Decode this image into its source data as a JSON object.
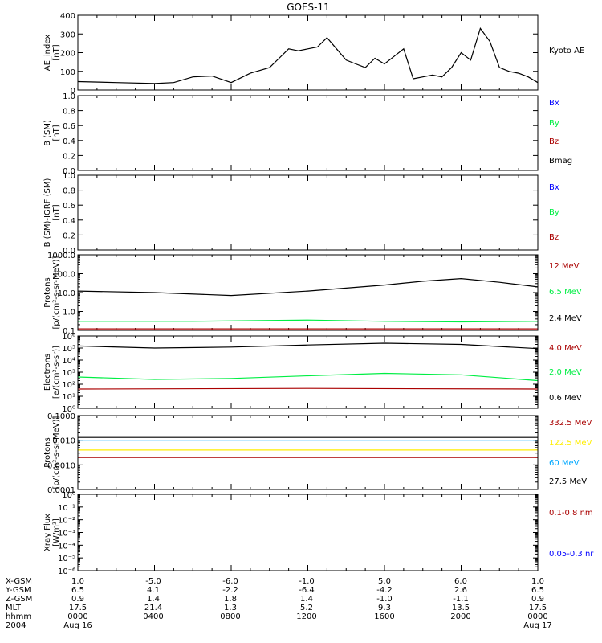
{
  "title": "GOES-11",
  "colors": {
    "black": "#000000",
    "blue": "#0000ff",
    "green": "#00ee44",
    "red": "#aa0000",
    "yellow": "#ffee00",
    "cyan": "#00a8ff"
  },
  "chart_data": [
    {
      "type": "line",
      "ylabel": [
        "AE_index",
        "[nT]"
      ],
      "ylim": [
        0,
        400
      ],
      "yscale": "linear",
      "yticks": [
        "0",
        "100",
        "200",
        "300",
        "400"
      ],
      "legend": [
        {
          "label": "Kyoto AE",
          "color": "#000000"
        }
      ],
      "series": [
        {
          "name": "Kyoto AE",
          "color": "#000000",
          "x": [
            0,
            2,
            4,
            5,
            6,
            7,
            8,
            9,
            10,
            10.5,
            11,
            11.5,
            12,
            12.5,
            13,
            13.5,
            14,
            14.5,
            15,
            15.5,
            16,
            16.5,
            17,
            17.5,
            18,
            18.5,
            19,
            19.5,
            20,
            20.5,
            21,
            21.5,
            22,
            22.5,
            23,
            23.5,
            24
          ],
          "y": [
            45,
            40,
            35,
            40,
            70,
            75,
            40,
            90,
            120,
            170,
            220,
            210,
            220,
            230,
            280,
            220,
            160,
            140,
            120,
            170,
            140,
            180,
            220,
            60,
            70,
            80,
            70,
            120,
            200,
            160,
            330,
            260,
            120,
            100,
            90,
            70,
            40
          ]
        }
      ]
    },
    {
      "type": "line",
      "ylabel": [
        "B (SM)",
        "[nT]"
      ],
      "ylim": [
        0,
        1
      ],
      "yscale": "linear",
      "yticks": [
        "0.0",
        "0.2",
        "0.4",
        "0.6",
        "0.8",
        "1.0"
      ],
      "legend": [
        {
          "label": "Bx",
          "color": "#0000ff"
        },
        {
          "label": "By",
          "color": "#00ee44"
        },
        {
          "label": "Bz",
          "color": "#aa0000"
        },
        {
          "label": "Bmag",
          "color": "#000000"
        }
      ],
      "series": []
    },
    {
      "type": "line",
      "ylabel": [
        "B (SM)-IGRF (SM)",
        "[nT]"
      ],
      "ylim": [
        0,
        1
      ],
      "yscale": "linear",
      "yticks": [
        "0.0",
        "0.2",
        "0.4",
        "0.6",
        "0.8",
        "1.0"
      ],
      "legend": [
        {
          "label": "Bx",
          "color": "#0000ff"
        },
        {
          "label": "By",
          "color": "#00ee44"
        },
        {
          "label": "Bz",
          "color": "#aa0000"
        }
      ],
      "series": []
    },
    {
      "type": "line",
      "ylabel": [
        "Protons",
        "[p/(cm²-s-sr-MeV)]"
      ],
      "ylim": [
        0.1,
        1000
      ],
      "yscale": "log",
      "yticks": [
        "0.1",
        "1.0",
        "10.0",
        "100.0",
        "1000.0"
      ],
      "legend": [
        {
          "label": "12 MeV",
          "color": "#aa0000"
        },
        {
          "label": "6.5 MeV",
          "color": "#00ee44"
        },
        {
          "label": "2.4 MeV",
          "color": "#000000"
        }
      ],
      "series": [
        {
          "name": "2.4 MeV",
          "color": "#000000",
          "x": [
            0,
            4,
            8,
            12,
            16,
            18,
            20,
            22,
            24
          ],
          "y": [
            12,
            10,
            7,
            12,
            25,
            40,
            55,
            35,
            20
          ]
        },
        {
          "name": "6.5 MeV",
          "color": "#00ee44",
          "x": [
            0,
            6,
            12,
            16,
            20,
            24
          ],
          "y": [
            0.3,
            0.3,
            0.35,
            0.3,
            0.28,
            0.3
          ]
        },
        {
          "name": "12 MeV",
          "color": "#aa0000",
          "x": [
            0,
            12,
            24
          ],
          "y": [
            0.12,
            0.12,
            0.12
          ]
        }
      ]
    },
    {
      "type": "line",
      "ylabel": [
        "Electrons",
        "[e/(cm²-s-sr)]"
      ],
      "ylim": [
        1,
        1000000
      ],
      "yscale": "log",
      "yticks": [
        "10⁰",
        "10¹",
        "10²",
        "10³",
        "10⁴",
        "10⁵",
        "10⁶"
      ],
      "legend": [
        {
          "label": "4.0 MeV",
          "color": "#aa0000"
        },
        {
          "label": "2.0 MeV",
          "color": "#00ee44"
        },
        {
          "label": "0.6 MeV",
          "color": "#000000"
        }
      ],
      "series": [
        {
          "name": "0.6 MeV",
          "color": "#000000",
          "x": [
            0,
            4,
            8,
            12,
            16,
            20,
            24
          ],
          "y": [
            150000,
            100000,
            120000,
            180000,
            250000,
            200000,
            90000
          ]
        },
        {
          "name": "2.0 MeV",
          "color": "#00ee44",
          "x": [
            0,
            4,
            8,
            12,
            16,
            20,
            24
          ],
          "y": [
            400,
            250,
            300,
            500,
            800,
            600,
            200
          ]
        },
        {
          "name": "4.0 MeV",
          "color": "#aa0000",
          "x": [
            0,
            12,
            24
          ],
          "y": [
            40,
            45,
            40
          ]
        }
      ]
    },
    {
      "type": "line",
      "ylabel": [
        "Protons",
        "[p/(cm²-s-sr-MeV)]"
      ],
      "ylim": [
        0.0001,
        0.1
      ],
      "yscale": "log",
      "yticks": [
        "0.0001",
        "0.0010",
        "0.010",
        "0.1000"
      ],
      "legend": [
        {
          "label": "332.5 MeV",
          "color": "#aa0000"
        },
        {
          "label": "122.5 MeV",
          "color": "#ffee00"
        },
        {
          "label": "60 MeV",
          "color": "#00a8ff"
        },
        {
          "label": "27.5 MeV",
          "color": "#000000"
        }
      ],
      "series": [
        {
          "name": "27.5 MeV",
          "color": "#000000",
          "x": [
            0,
            24
          ],
          "y": [
            0.013,
            0.013
          ]
        },
        {
          "name": "60 MeV",
          "color": "#00a8ff",
          "x": [
            0,
            24
          ],
          "y": [
            0.01,
            0.01
          ]
        },
        {
          "name": "122.5 MeV",
          "color": "#ffee00",
          "x": [
            0,
            24
          ],
          "y": [
            0.004,
            0.004
          ]
        },
        {
          "name": "332.5 MeV",
          "color": "#aa0000",
          "x": [
            0,
            24
          ],
          "y": [
            0.002,
            0.002
          ]
        }
      ]
    },
    {
      "type": "line",
      "ylabel": [
        "Xray Flux",
        "[W/m²]"
      ],
      "ylim": [
        1e-06,
        1
      ],
      "yscale": "log",
      "yticks": [
        "10⁻⁶",
        "10⁻⁵",
        "10⁻⁴",
        "10⁻³",
        "10⁻²",
        "10⁻¹",
        "10⁰"
      ],
      "legend": [
        {
          "label": "0.1-0.8 nm",
          "color": "#aa0000"
        },
        {
          "label": "0.05-0.3 nr",
          "color": "#0000ff"
        }
      ],
      "series": []
    }
  ],
  "ephemeris": {
    "rows": [
      {
        "label": "X-GSM",
        "values": [
          "1.0",
          "-5.0",
          "-6.0",
          "-1.0",
          "5.0",
          "6.0",
          "1.0"
        ]
      },
      {
        "label": "Y-GSM",
        "values": [
          "6.5",
          "4.1",
          "-2.2",
          "-6.4",
          "-4.2",
          "2.6",
          "6.5"
        ]
      },
      {
        "label": "Z-GSM",
        "values": [
          "0.9",
          "1.4",
          "1.8",
          "1.4",
          "-1.0",
          "-1.1",
          "0.9"
        ]
      },
      {
        "label": "MLT",
        "values": [
          "17.5",
          "21.4",
          "1.3",
          "5.2",
          "9.3",
          "13.5",
          "17.5"
        ]
      },
      {
        "label": "hhmm",
        "values": [
          "0000",
          "0400",
          "0800",
          "1200",
          "1600",
          "2000",
          "0000"
        ]
      },
      {
        "label": "2004",
        "values": [
          "Aug 16",
          "",
          "",
          "",
          "",
          "",
          "Aug 17"
        ]
      }
    ]
  }
}
